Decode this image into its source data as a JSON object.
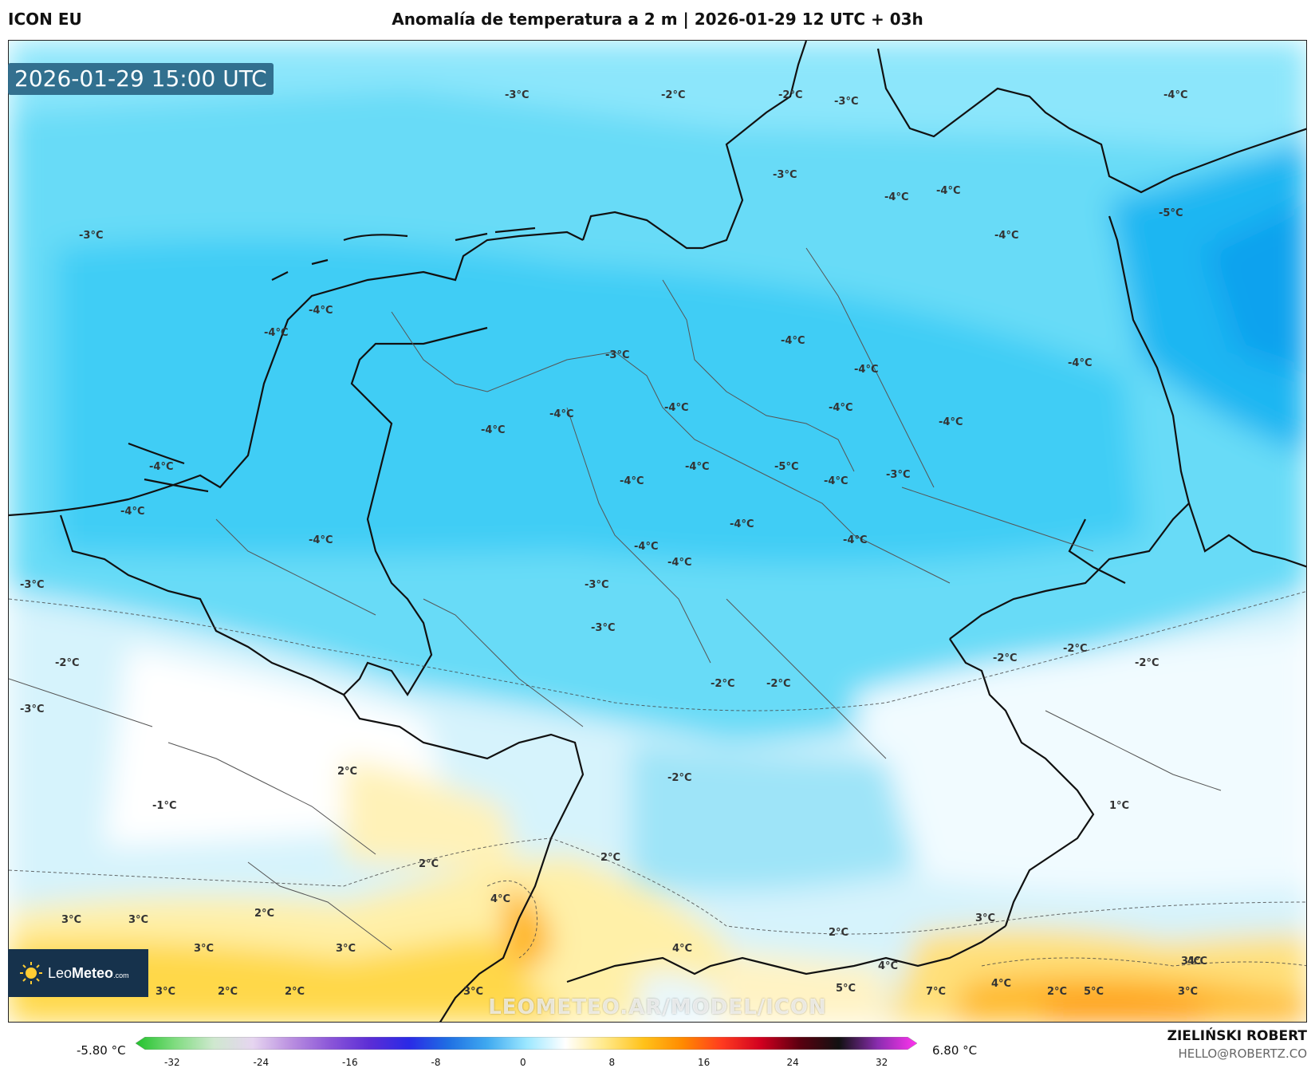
{
  "header": {
    "model": "ICON EU",
    "title": "Anomalía de temperatura a 2 m | 2026-01-29 12 UTC + 03h"
  },
  "valid_time": "2026-01-29 15:00 UTC",
  "watermark": "LEOMETEO.AR/MODEL/ICON",
  "logo": {
    "name_light": "Leo",
    "name_bold": "Meteo",
    "suffix": ".com",
    "icon": "sun-icon"
  },
  "colorbar": {
    "min_label": "-5.80 °C",
    "max_label": "6.80 °C",
    "ticks": [
      "-32",
      "-24",
      "-16",
      "-8",
      "0",
      "8",
      "16",
      "24",
      "32"
    ],
    "stops": [
      "#22c22c",
      "#7fdc7f",
      "#cfe8cf",
      "#e6d5f0",
      "#b98ee0",
      "#8a55d8",
      "#5b2dd6",
      "#2a2ae6",
      "#1f6fe3",
      "#3fa9f0",
      "#9be7ff",
      "#ffffff",
      "#ffe98a",
      "#ffc21a",
      "#ff8a00",
      "#ff3b1f",
      "#d1001f",
      "#5a0010",
      "#111111",
      "#8b2db0",
      "#ff33ee"
    ]
  },
  "credits": {
    "author": "ZIELIŃSKI ROBERT",
    "email": "HELLO@ROBERTZ.CO"
  },
  "map_labels": [
    {
      "t": "-3°C"
    },
    {
      "t": "-2°C"
    },
    {
      "t": "-2°C"
    },
    {
      "t": "-3°C"
    },
    {
      "t": "-4°C"
    },
    {
      "t": "-3°C"
    },
    {
      "t": "-4°C"
    },
    {
      "t": "-4°C"
    },
    {
      "t": "-4°C"
    },
    {
      "t": "-5°C"
    },
    {
      "t": "-3°C"
    },
    {
      "t": "-4°C"
    },
    {
      "t": "-4°C"
    },
    {
      "t": "-4°C"
    },
    {
      "t": "-3°C"
    },
    {
      "t": "-4°C"
    },
    {
      "t": "-4°C"
    },
    {
      "t": "-4°C"
    },
    {
      "t": "-4°C"
    },
    {
      "t": "-4°C"
    },
    {
      "t": "-4°C"
    },
    {
      "t": "-4°C"
    },
    {
      "t": "-4°C"
    },
    {
      "t": "-4°C"
    },
    {
      "t": "-5°C"
    },
    {
      "t": "-4°C"
    },
    {
      "t": "-3°C"
    },
    {
      "t": "-4°C"
    },
    {
      "t": "-4°C"
    },
    {
      "t": "-4°C"
    },
    {
      "t": "-4°C"
    },
    {
      "t": "-4°C"
    },
    {
      "t": "-4°C"
    },
    {
      "t": "-4°C"
    },
    {
      "t": "-3°C"
    },
    {
      "t": "-3°C"
    },
    {
      "t": "-3°C"
    },
    {
      "t": "-2°C"
    },
    {
      "t": "-2°C"
    },
    {
      "t": "-2°C"
    },
    {
      "t": "-2°C"
    },
    {
      "t": "-3°C"
    },
    {
      "t": "-2°C"
    },
    {
      "t": "-2°C"
    },
    {
      "t": "-2°C"
    },
    {
      "t": "-1°C"
    },
    {
      "t": "2°C"
    },
    {
      "t": "1°C"
    },
    {
      "t": "2°C"
    },
    {
      "t": "2°C"
    },
    {
      "t": "4°C"
    },
    {
      "t": "3°C"
    },
    {
      "t": "3°C"
    },
    {
      "t": "2°C"
    },
    {
      "t": "3°C"
    },
    {
      "t": "3°C"
    },
    {
      "t": "2°C"
    },
    {
      "t": "3°C"
    },
    {
      "t": "4°C"
    },
    {
      "t": "4°C"
    },
    {
      "t": "4°C"
    },
    {
      "t": "3°C"
    },
    {
      "t": "3°C"
    },
    {
      "t": "3°C"
    },
    {
      "t": "3°C"
    },
    {
      "t": "2°C"
    },
    {
      "t": "2°C"
    },
    {
      "t": "3°C"
    },
    {
      "t": "5°C"
    },
    {
      "t": "7°C"
    },
    {
      "t": "2°C"
    },
    {
      "t": "5°C"
    },
    {
      "t": "3°C"
    },
    {
      "t": "4°C"
    }
  ]
}
